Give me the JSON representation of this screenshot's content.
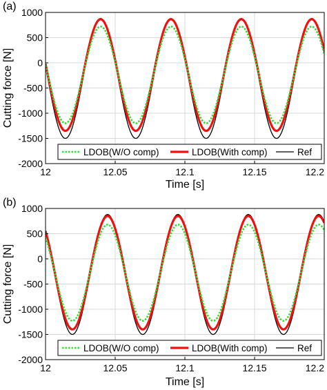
{
  "chart_data": [
    {
      "panel_label": "(a)",
      "type": "line",
      "xlabel": "Time [s]",
      "ylabel": "Cutting force [N]",
      "xlim": [
        12,
        12.2
      ],
      "ylim": [
        -2000,
        1000
      ],
      "xticks": [
        12,
        12.05,
        12.1,
        12.15,
        12.2
      ],
      "xtick_labels": [
        "12",
        "12.05",
        "12.1",
        "12.15",
        "12.2"
      ],
      "yticks": [
        -2000,
        -1500,
        -1000,
        -500,
        0,
        500,
        1000
      ],
      "ytick_labels": [
        "-2000",
        "-1500",
        "-1000",
        "-500",
        "0",
        "500",
        "1000"
      ],
      "grid": true,
      "legend_placement": "bottom",
      "period": 0.0505,
      "peak_time": 12.0395,
      "series": [
        {
          "name": "LDOB(W/O comp)",
          "color": "#33dd33",
          "style": "dotted",
          "max": 720,
          "min": -1200
        },
        {
          "name": "LDOB(With comp)",
          "color": "#ee1111",
          "style": "solid",
          "max": 865,
          "min": -1350
        },
        {
          "name": "Ref",
          "color": "#000000",
          "style": "solid",
          "max": 880,
          "min": -1500
        }
      ]
    },
    {
      "panel_label": "(b)",
      "type": "line",
      "xlabel": "Time [s]",
      "ylabel": "Cutting force [N]",
      "xlim": [
        12,
        12.2
      ],
      "ylim": [
        -2000,
        1000
      ],
      "xticks": [
        12,
        12.05,
        12.1,
        12.15,
        12.2
      ],
      "xtick_labels": [
        "12",
        "12.05",
        "12.1",
        "12.15",
        "12.2"
      ],
      "yticks": [
        -2000,
        -1500,
        -1000,
        -500,
        0,
        500,
        1000
      ],
      "ytick_labels": [
        "-2000",
        "-1500",
        "-1000",
        "-500",
        "0",
        "500",
        "1000"
      ],
      "grid": true,
      "legend_placement": "bottom",
      "period": 0.0505,
      "peak_time": 12.0445,
      "series": [
        {
          "name": "LDOB(W/O comp)",
          "color": "#33dd33",
          "style": "dotted",
          "max": 680,
          "min": -1230
        },
        {
          "name": "LDOB(With comp)",
          "color": "#ee1111",
          "style": "solid",
          "max": 850,
          "min": -1400
        },
        {
          "name": "Ref",
          "color": "#000000",
          "style": "solid",
          "max": 880,
          "min": -1500
        }
      ]
    }
  ]
}
